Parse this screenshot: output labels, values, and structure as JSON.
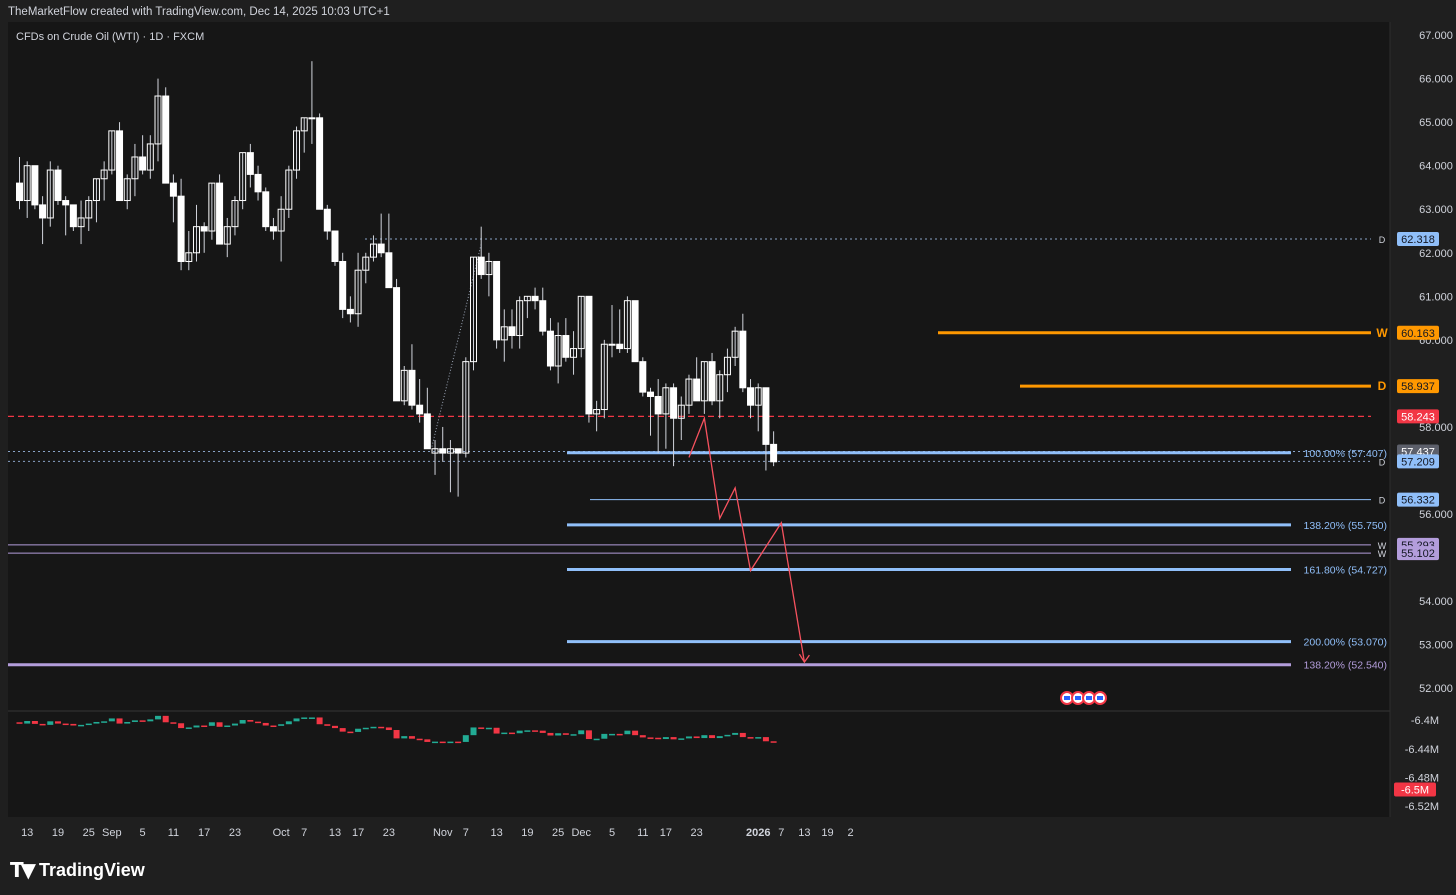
{
  "header": {
    "credit": "TheMarketFlow created with TradingView.com, Dec 14, 2025 10:03 UTC+1",
    "symbol_title": "CFDs on Crude Oil (WTI) · 1D · FXCM"
  },
  "footer": {
    "logo_text": "TradingView"
  },
  "colors": {
    "background": "#1f1f1f",
    "panel": "#161616",
    "grid": "#2a2a2a",
    "candle_up": "#ffffff",
    "candle_down": "#ffffff",
    "wick": "#d1d4dc",
    "fib_line": "#90bff9",
    "orange": "#ff9800",
    "red_dash": "#f23645",
    "purple": "#b39ddb",
    "projection": "#f7525f",
    "vol_up": "#22ab94",
    "vol_down": "#f23645",
    "ref_dash": "#8aa4c8"
  },
  "chart_data": {
    "type": "candlestick",
    "title": "CFDs on Crude Oil (WTI) · 1D · FXCM",
    "y_axis": {
      "range": [
        51.5,
        67.3
      ],
      "ticks": [
        "67.000",
        "66.000",
        "65.000",
        "64.000",
        "63.000",
        "62.000",
        "61.000",
        "60.000",
        "58.000",
        "56.000",
        "54.000",
        "53.000",
        "52.000"
      ]
    },
    "x_axis": {
      "ticks": [
        {
          "label": "13",
          "index": 1
        },
        {
          "label": "19",
          "index": 5
        },
        {
          "label": "25",
          "index": 9
        },
        {
          "label": "Sep",
          "index": 12
        },
        {
          "label": "5",
          "index": 16
        },
        {
          "label": "11",
          "index": 20
        },
        {
          "label": "17",
          "index": 24
        },
        {
          "label": "23",
          "index": 28
        },
        {
          "label": "Oct",
          "index": 34
        },
        {
          "label": "7",
          "index": 37
        },
        {
          "label": "13",
          "index": 41
        },
        {
          "label": "17",
          "index": 44
        },
        {
          "label": "23",
          "index": 48
        },
        {
          "label": "Nov",
          "index": 55
        },
        {
          "label": "7",
          "index": 58
        },
        {
          "label": "13",
          "index": 62
        },
        {
          "label": "19",
          "index": 66
        },
        {
          "label": "25",
          "index": 70
        },
        {
          "label": "Dec",
          "index": 73
        },
        {
          "label": "5",
          "index": 77
        },
        {
          "label": "11",
          "index": 81
        },
        {
          "label": "17",
          "index": 84
        },
        {
          "label": "23",
          "index": 88
        },
        {
          "label": "2026",
          "index": 96
        },
        {
          "label": "7",
          "index": 99
        },
        {
          "label": "13",
          "index": 102
        },
        {
          "label": "19",
          "index": 105
        },
        {
          "label": "2",
          "index": 108
        }
      ]
    },
    "ohlc": [
      [
        63.6,
        64.2,
        63.0,
        63.2
      ],
      [
        63.2,
        64.1,
        62.8,
        64.0
      ],
      [
        64.0,
        64.0,
        63.0,
        63.1
      ],
      [
        63.1,
        63.3,
        62.2,
        62.8
      ],
      [
        62.8,
        64.1,
        62.6,
        63.9
      ],
      [
        63.9,
        64.0,
        63.1,
        63.2
      ],
      [
        63.2,
        63.3,
        62.4,
        63.1
      ],
      [
        63.1,
        63.1,
        62.5,
        62.6
      ],
      [
        62.6,
        63.2,
        62.2,
        62.8
      ],
      [
        62.8,
        63.3,
        62.5,
        63.2
      ],
      [
        63.2,
        63.7,
        62.7,
        63.7
      ],
      [
        63.7,
        64.1,
        63.2,
        63.9
      ],
      [
        63.9,
        64.8,
        63.8,
        64.8
      ],
      [
        64.8,
        65.0,
        63.2,
        63.2
      ],
      [
        63.2,
        63.8,
        63.0,
        63.7
      ],
      [
        63.7,
        64.5,
        63.3,
        64.2
      ],
      [
        64.2,
        64.7,
        63.8,
        63.9
      ],
      [
        63.9,
        64.7,
        63.7,
        64.5
      ],
      [
        64.5,
        66.0,
        64.1,
        65.6
      ],
      [
        65.6,
        65.8,
        63.6,
        63.6
      ],
      [
        63.6,
        63.8,
        62.7,
        63.3
      ],
      [
        63.3,
        63.7,
        61.6,
        61.8
      ],
      [
        61.8,
        62.5,
        61.6,
        62.0
      ],
      [
        62.0,
        63.1,
        61.8,
        62.6
      ],
      [
        62.6,
        62.7,
        62.0,
        62.5
      ],
      [
        62.5,
        63.6,
        62.3,
        63.6
      ],
      [
        63.6,
        63.8,
        62.2,
        62.2
      ],
      [
        62.2,
        62.8,
        61.9,
        62.6
      ],
      [
        62.6,
        63.3,
        62.4,
        63.2
      ],
      [
        63.2,
        64.3,
        63.0,
        64.3
      ],
      [
        64.3,
        64.5,
        63.5,
        63.8
      ],
      [
        63.8,
        64.0,
        63.2,
        63.4
      ],
      [
        63.4,
        63.5,
        62.5,
        62.6
      ],
      [
        62.6,
        62.8,
        62.3,
        62.5
      ],
      [
        62.5,
        63.3,
        61.8,
        63.0
      ],
      [
        63.0,
        64.0,
        62.8,
        63.9
      ],
      [
        63.9,
        64.9,
        63.7,
        64.8
      ],
      [
        64.8,
        65.1,
        64.3,
        65.1
      ],
      [
        65.1,
        66.4,
        64.5,
        65.1
      ],
      [
        65.1,
        65.2,
        63.0,
        63.0
      ],
      [
        63.0,
        63.1,
        62.3,
        62.5
      ],
      [
        62.5,
        62.5,
        61.7,
        61.8
      ],
      [
        61.8,
        62.0,
        60.5,
        60.7
      ],
      [
        60.7,
        61.0,
        60.4,
        60.6
      ],
      [
        60.6,
        62.0,
        60.3,
        61.6
      ],
      [
        61.6,
        62.0,
        61.3,
        61.9
      ],
      [
        61.9,
        62.4,
        61.8,
        62.2
      ],
      [
        62.2,
        62.9,
        61.9,
        62.0
      ],
      [
        62.0,
        62.9,
        61.2,
        61.2
      ],
      [
        61.2,
        61.4,
        58.6,
        58.6
      ],
      [
        58.6,
        59.4,
        58.5,
        59.3
      ],
      [
        59.3,
        59.9,
        58.4,
        58.5
      ],
      [
        58.5,
        59.1,
        58.1,
        58.3
      ],
      [
        58.3,
        58.9,
        57.5,
        57.5
      ],
      [
        57.4,
        57.7,
        56.9,
        57.5
      ],
      [
        57.5,
        58.0,
        57.2,
        57.4
      ],
      [
        57.4,
        57.7,
        56.5,
        57.5
      ],
      [
        57.5,
        57.5,
        56.4,
        57.4
      ],
      [
        57.4,
        59.6,
        57.3,
        59.5
      ],
      [
        59.5,
        61.9,
        59.3,
        61.9
      ],
      [
        61.9,
        62.6,
        61.4,
        61.5
      ],
      [
        61.5,
        62.0,
        61.0,
        61.8
      ],
      [
        61.8,
        61.8,
        59.8,
        60.0
      ],
      [
        60.0,
        60.7,
        59.5,
        60.3
      ],
      [
        60.3,
        60.7,
        59.8,
        60.1
      ],
      [
        60.1,
        61.0,
        59.8,
        60.9
      ],
      [
        60.9,
        61.0,
        60.5,
        61.0
      ],
      [
        61.0,
        61.2,
        60.7,
        60.9
      ],
      [
        60.9,
        61.2,
        60.1,
        60.2
      ],
      [
        60.2,
        60.5,
        59.3,
        59.4
      ],
      [
        59.4,
        60.4,
        59.0,
        60.1
      ],
      [
        60.1,
        60.5,
        59.5,
        59.6
      ],
      [
        59.6,
        60.2,
        59.2,
        59.8
      ],
      [
        59.8,
        61.0,
        59.6,
        61.0
      ],
      [
        61.0,
        61.0,
        58.1,
        58.3
      ],
      [
        58.3,
        58.6,
        57.9,
        58.4
      ],
      [
        58.4,
        60.0,
        58.2,
        59.9
      ],
      [
        59.9,
        60.8,
        59.6,
        59.9
      ],
      [
        59.9,
        60.7,
        59.7,
        59.8
      ],
      [
        59.8,
        61.0,
        59.7,
        60.9
      ],
      [
        60.9,
        60.9,
        59.5,
        59.5
      ],
      [
        59.5,
        59.6,
        58.7,
        58.8
      ],
      [
        58.8,
        58.9,
        57.8,
        58.7
      ],
      [
        58.7,
        59.1,
        57.4,
        58.3
      ],
      [
        58.3,
        59.0,
        57.5,
        58.9
      ],
      [
        58.9,
        59.0,
        57.1,
        58.2
      ],
      [
        58.2,
        58.7,
        57.7,
        58.5
      ],
      [
        58.5,
        59.2,
        58.3,
        59.1
      ],
      [
        59.1,
        59.6,
        58.6,
        58.6
      ],
      [
        58.6,
        59.5,
        58.3,
        59.5
      ],
      [
        59.5,
        59.7,
        58.5,
        58.6
      ],
      [
        58.6,
        59.3,
        58.2,
        59.2
      ],
      [
        59.2,
        59.8,
        58.8,
        59.6
      ],
      [
        59.6,
        60.3,
        59.4,
        60.2
      ],
      [
        60.2,
        60.6,
        58.8,
        58.9
      ],
      [
        58.9,
        59.1,
        58.2,
        58.5
      ],
      [
        58.5,
        59.0,
        57.9,
        58.9
      ],
      [
        58.9,
        58.9,
        57.0,
        57.6
      ],
      [
        57.6,
        57.9,
        57.1,
        57.2
      ]
    ],
    "indicator": {
      "name": "",
      "ticks": [
        "-6.4M",
        "-6.44M",
        "-6.48M",
        "-6.52M"
      ],
      "last_value": "-6.5M",
      "range": [
        -6.527,
        -6.397
      ]
    },
    "levels": [
      {
        "price": 62.318,
        "label": "62.318",
        "tag": "D",
        "style": "dotted",
        "color_key": "ref_dash"
      },
      {
        "price": 60.163,
        "label": "60.163",
        "tag": "W",
        "style": "solid",
        "color_key": "orange"
      },
      {
        "price": 58.937,
        "label": "58.937",
        "tag": "D",
        "style": "solid",
        "color_key": "orange"
      },
      {
        "price": 58.243,
        "label": "58.243",
        "tag": "",
        "style": "dashed",
        "color_key": "red_dash"
      },
      {
        "price": 57.437,
        "label": "57.437",
        "tag": "",
        "style": "dotted",
        "color_key": "ref_dash"
      },
      {
        "price": 57.209,
        "label": "57.209",
        "tag": "D",
        "style": "dotted",
        "color_key": "ref_dash"
      },
      {
        "price": 56.332,
        "label": "56.332",
        "tag": "D",
        "style": "thin",
        "color_key": "fib_line"
      },
      {
        "price": 55.293,
        "label": "55.293",
        "tag": "W",
        "style": "thin",
        "color_key": "purple"
      },
      {
        "price": 55.102,
        "label": "55.102",
        "tag": "W",
        "style": "thin",
        "color_key": "purple"
      }
    ],
    "fib_levels": [
      {
        "price": 57.407,
        "label": "100.00% (57.407)"
      },
      {
        "price": 55.75,
        "label": "138.20% (55.750)"
      },
      {
        "price": 54.727,
        "label": "161.80% (54.727)"
      },
      {
        "price": 53.07,
        "label": "200.00% (53.070)"
      },
      {
        "price": 52.54,
        "label": "138.20% (52.540)",
        "purple": true
      }
    ],
    "projection_path": [
      {
        "index": 87,
        "price": 57.3
      },
      {
        "index": 89,
        "price": 58.2
      },
      {
        "index": 91,
        "price": 55.9
      },
      {
        "index": 93,
        "price": 56.6
      },
      {
        "index": 95,
        "price": 54.7
      },
      {
        "index": 99,
        "price": 55.8
      },
      {
        "index": 102,
        "price": 52.6
      }
    ]
  }
}
